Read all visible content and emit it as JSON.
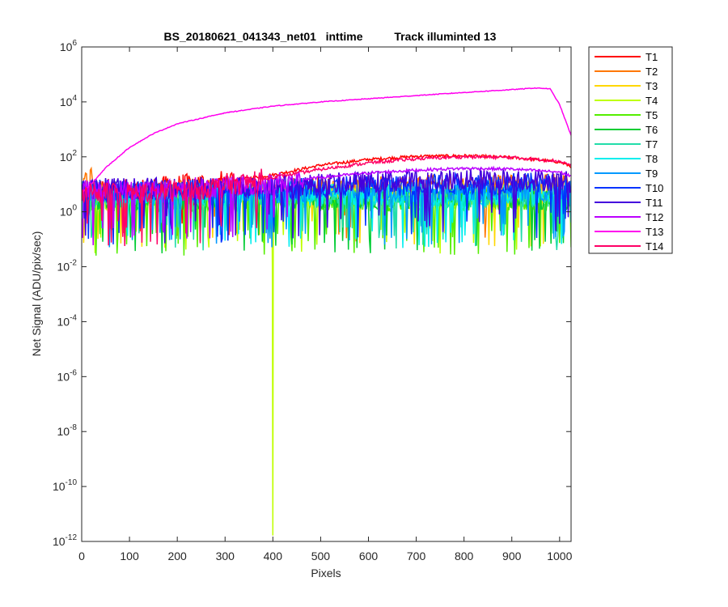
{
  "chart_data": {
    "type": "line",
    "title": "BS_20180621_041343_net01   inttime          Track illuminted 13",
    "xlabel": "Pixels",
    "ylabel": "Net Signal (ADU/pix/sec)",
    "xlim": [
      0,
      1024
    ],
    "ylim": [
      1e-12,
      1000000.0
    ],
    "yscale": "log",
    "xticks": [
      0,
      100,
      200,
      300,
      400,
      500,
      600,
      700,
      800,
      900,
      1000
    ],
    "yticks": [
      {
        "base": "10",
        "exp": "-12",
        "value": 1e-12
      },
      {
        "base": "10",
        "exp": "-10",
        "value": 1e-10
      },
      {
        "base": "10",
        "exp": "-8",
        "value": 1e-08
      },
      {
        "base": "10",
        "exp": "-6",
        "value": 1e-06
      },
      {
        "base": "10",
        "exp": "-4",
        "value": 0.0001
      },
      {
        "base": "10",
        "exp": "-2",
        "value": 0.01
      },
      {
        "base": "10",
        "exp": "0",
        "value": 1
      },
      {
        "base": "10",
        "exp": "2",
        "value": 100
      },
      {
        "base": "10",
        "exp": "4",
        "value": 10000
      },
      {
        "base": "10",
        "exp": "6",
        "value": 1000000
      }
    ],
    "grid": false,
    "legend_position": "outside-top-right",
    "series": [
      {
        "name": "T1",
        "color": "#ff0000",
        "x": [
          0,
          25,
          50,
          100,
          200,
          300,
          400,
          500,
          600,
          700,
          800,
          900,
          950,
          1000,
          1024
        ],
        "y": [
          5,
          6,
          7,
          6,
          9,
          13,
          22,
          50,
          80,
          105,
          110,
          95,
          80,
          65,
          45
        ]
      },
      {
        "name": "T2",
        "color": "#ff7700",
        "x": [
          0,
          10,
          20,
          30,
          50,
          100,
          200,
          300,
          400,
          500,
          600,
          700,
          800,
          900,
          1000,
          1024
        ],
        "y": [
          6,
          15,
          20,
          6,
          5,
          5,
          6,
          7,
          7,
          8,
          8,
          9,
          9,
          9,
          10,
          10
        ]
      },
      {
        "name": "T3",
        "color": "#ffd700",
        "x": [
          0,
          100,
          200,
          300,
          400,
          500,
          600,
          700,
          800,
          900,
          1000,
          1024
        ],
        "y": [
          4,
          4,
          4,
          5,
          5,
          5,
          5,
          5,
          5,
          5,
          5,
          5
        ]
      },
      {
        "name": "T4",
        "color": "#bfff00",
        "x": [
          0,
          100,
          200,
          300,
          398,
          399,
          400,
          401,
          402,
          500,
          600,
          700,
          800,
          900,
          1000,
          1024
        ],
        "y": [
          3,
          3,
          3,
          3,
          3,
          0.01,
          2e-12,
          0.5,
          3,
          3,
          3,
          3,
          3,
          3,
          3,
          3
        ]
      },
      {
        "name": "T5",
        "color": "#55ee00",
        "x": [
          0,
          100,
          200,
          300,
          400,
          500,
          600,
          700,
          800,
          900,
          1000,
          1024
        ],
        "y": [
          2.5,
          2.5,
          2.5,
          2.5,
          2.5,
          2.5,
          2.5,
          2.5,
          2.5,
          2.5,
          2.5,
          2.5
        ]
      },
      {
        "name": "T6",
        "color": "#00cc33",
        "x": [
          0,
          100,
          200,
          300,
          400,
          500,
          600,
          700,
          800,
          900,
          1000,
          1024
        ],
        "y": [
          3,
          3,
          3,
          3,
          3,
          3,
          3,
          3,
          3,
          3,
          3,
          3
        ]
      },
      {
        "name": "T7",
        "color": "#22ddaa",
        "x": [
          0,
          100,
          200,
          300,
          400,
          500,
          600,
          700,
          800,
          900,
          1000,
          1024
        ],
        "y": [
          3.5,
          3.5,
          3.5,
          3.5,
          3.5,
          3.5,
          3.5,
          3.5,
          3.5,
          3.5,
          3.5,
          3.5
        ]
      },
      {
        "name": "T8",
        "color": "#00eeee",
        "x": [
          0,
          100,
          200,
          300,
          400,
          500,
          600,
          700,
          800,
          900,
          1000,
          1024
        ],
        "y": [
          4,
          4,
          4,
          4,
          4,
          4,
          4,
          4,
          4,
          4,
          4,
          4
        ]
      },
      {
        "name": "T9",
        "color": "#0099ff",
        "x": [
          0,
          100,
          200,
          300,
          400,
          500,
          600,
          700,
          800,
          900,
          1000,
          1024
        ],
        "y": [
          5,
          5,
          5,
          5,
          5,
          6,
          6,
          6,
          6,
          6,
          6,
          6
        ]
      },
      {
        "name": "T10",
        "color": "#0033ff",
        "x": [
          0,
          100,
          200,
          300,
          400,
          500,
          600,
          700,
          800,
          900,
          1000,
          1024
        ],
        "y": [
          6,
          6,
          6,
          7,
          7,
          8,
          9,
          10,
          10,
          11,
          10,
          9
        ]
      },
      {
        "name": "T11",
        "color": "#4400dd",
        "x": [
          0,
          100,
          200,
          300,
          400,
          500,
          600,
          700,
          800,
          900,
          1000,
          1024
        ],
        "y": [
          7,
          7,
          7,
          8,
          9,
          10,
          12,
          14,
          15,
          15,
          14,
          12
        ]
      },
      {
        "name": "T12",
        "color": "#bb00ff",
        "x": [
          0,
          100,
          200,
          300,
          400,
          500,
          600,
          700,
          800,
          900,
          1000,
          1024
        ],
        "y": [
          6,
          6,
          7,
          8,
          11,
          18,
          26,
          33,
          38,
          36,
          28,
          20
        ]
      },
      {
        "name": "T13",
        "color": "#ff00ee",
        "x": [
          0,
          20,
          50,
          100,
          150,
          200,
          300,
          400,
          500,
          600,
          700,
          800,
          900,
          950,
          980,
          1000,
          1024
        ],
        "y": [
          5,
          10,
          40,
          220,
          700,
          1600,
          4000,
          7000,
          10000,
          13000,
          17000,
          22000,
          28000,
          32000,
          30000,
          8000,
          600
        ]
      },
      {
        "name": "T14",
        "color": "#ff0066",
        "x": [
          0,
          50,
          100,
          150,
          200,
          250,
          300,
          350,
          400,
          500,
          600,
          700,
          800,
          900,
          1000,
          1024
        ],
        "y": [
          5,
          5,
          5,
          5,
          6,
          7,
          9,
          12,
          18,
          35,
          60,
          85,
          100,
          95,
          70,
          50
        ]
      }
    ]
  }
}
